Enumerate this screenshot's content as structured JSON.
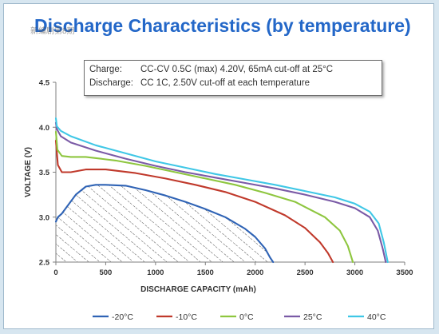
{
  "watermark": "新编剧第8期",
  "notes": [
    {
      "key": "Charge:",
      "value": "CC-CV 0.5C (max) 4.20V, 65mA cut-off at 25°C"
    },
    {
      "key": "Discharge:",
      "value": "CC 1C, 2.50V cut-off at each temperature"
    }
  ],
  "colors": {
    "title": "#2367c8",
    "hatch": "#222222"
  },
  "chart_data": {
    "type": "line",
    "title": "Discharge Characteristics (by temperature)",
    "xlabel": "DISCHARGE CAPACITY (mAh)",
    "ylabel": "VOLTAGE (V)",
    "xlim": [
      0,
      3500
    ],
    "ylim": [
      2.5,
      4.5
    ],
    "xticks": [
      "0",
      "500",
      "1000",
      "1500",
      "2000",
      "2500",
      "3000",
      "3500"
    ],
    "yticks": [
      "2.5",
      "3.0",
      "3.5",
      "4.0",
      "4.5"
    ],
    "grid": false,
    "legend_position": "bottom",
    "series": [
      {
        "name": "-20°C",
        "color": "#2f63b5",
        "x": [
          0,
          20,
          60,
          100,
          200,
          300,
          400,
          500,
          700,
          900,
          1100,
          1300,
          1500,
          1700,
          1900,
          2000,
          2100,
          2150,
          2180
        ],
        "y": [
          2.95,
          3.0,
          3.04,
          3.1,
          3.25,
          3.34,
          3.36,
          3.36,
          3.35,
          3.3,
          3.24,
          3.17,
          3.09,
          3.0,
          2.87,
          2.78,
          2.65,
          2.55,
          2.5
        ]
      },
      {
        "name": "-10°C",
        "color": "#c0392b",
        "x": [
          0,
          20,
          60,
          150,
          300,
          500,
          800,
          1100,
          1400,
          1700,
          2000,
          2300,
          2500,
          2650,
          2730,
          2780
        ],
        "y": [
          3.85,
          3.58,
          3.5,
          3.5,
          3.53,
          3.53,
          3.49,
          3.43,
          3.36,
          3.28,
          3.17,
          3.02,
          2.88,
          2.72,
          2.6,
          2.5
        ]
      },
      {
        "name": "0°C",
        "color": "#8ec63f",
        "x": [
          0,
          15,
          60,
          150,
          300,
          600,
          900,
          1200,
          1500,
          1800,
          2100,
          2400,
          2700,
          2850,
          2930,
          2980
        ],
        "y": [
          3.95,
          3.75,
          3.68,
          3.67,
          3.67,
          3.63,
          3.57,
          3.5,
          3.43,
          3.36,
          3.27,
          3.17,
          3.0,
          2.85,
          2.68,
          2.5
        ]
      },
      {
        "name": "25°C",
        "color": "#7a5aa6",
        "x": [
          0,
          10,
          50,
          150,
          400,
          700,
          1000,
          1300,
          1600,
          1900,
          2200,
          2500,
          2800,
          3000,
          3150,
          3230,
          3280,
          3310
        ],
        "y": [
          4.05,
          3.98,
          3.9,
          3.83,
          3.74,
          3.65,
          3.57,
          3.5,
          3.44,
          3.38,
          3.32,
          3.25,
          3.17,
          3.1,
          3.0,
          2.85,
          2.65,
          2.5
        ]
      },
      {
        "name": "40°C",
        "color": "#3fc7e6",
        "x": [
          0,
          10,
          50,
          150,
          400,
          700,
          1000,
          1300,
          1600,
          1900,
          2200,
          2500,
          2800,
          3000,
          3150,
          3240,
          3290,
          3330
        ],
        "y": [
          4.1,
          4.01,
          3.96,
          3.9,
          3.8,
          3.71,
          3.62,
          3.55,
          3.48,
          3.42,
          3.36,
          3.29,
          3.22,
          3.15,
          3.06,
          2.93,
          2.72,
          2.5
        ]
      }
    ]
  }
}
